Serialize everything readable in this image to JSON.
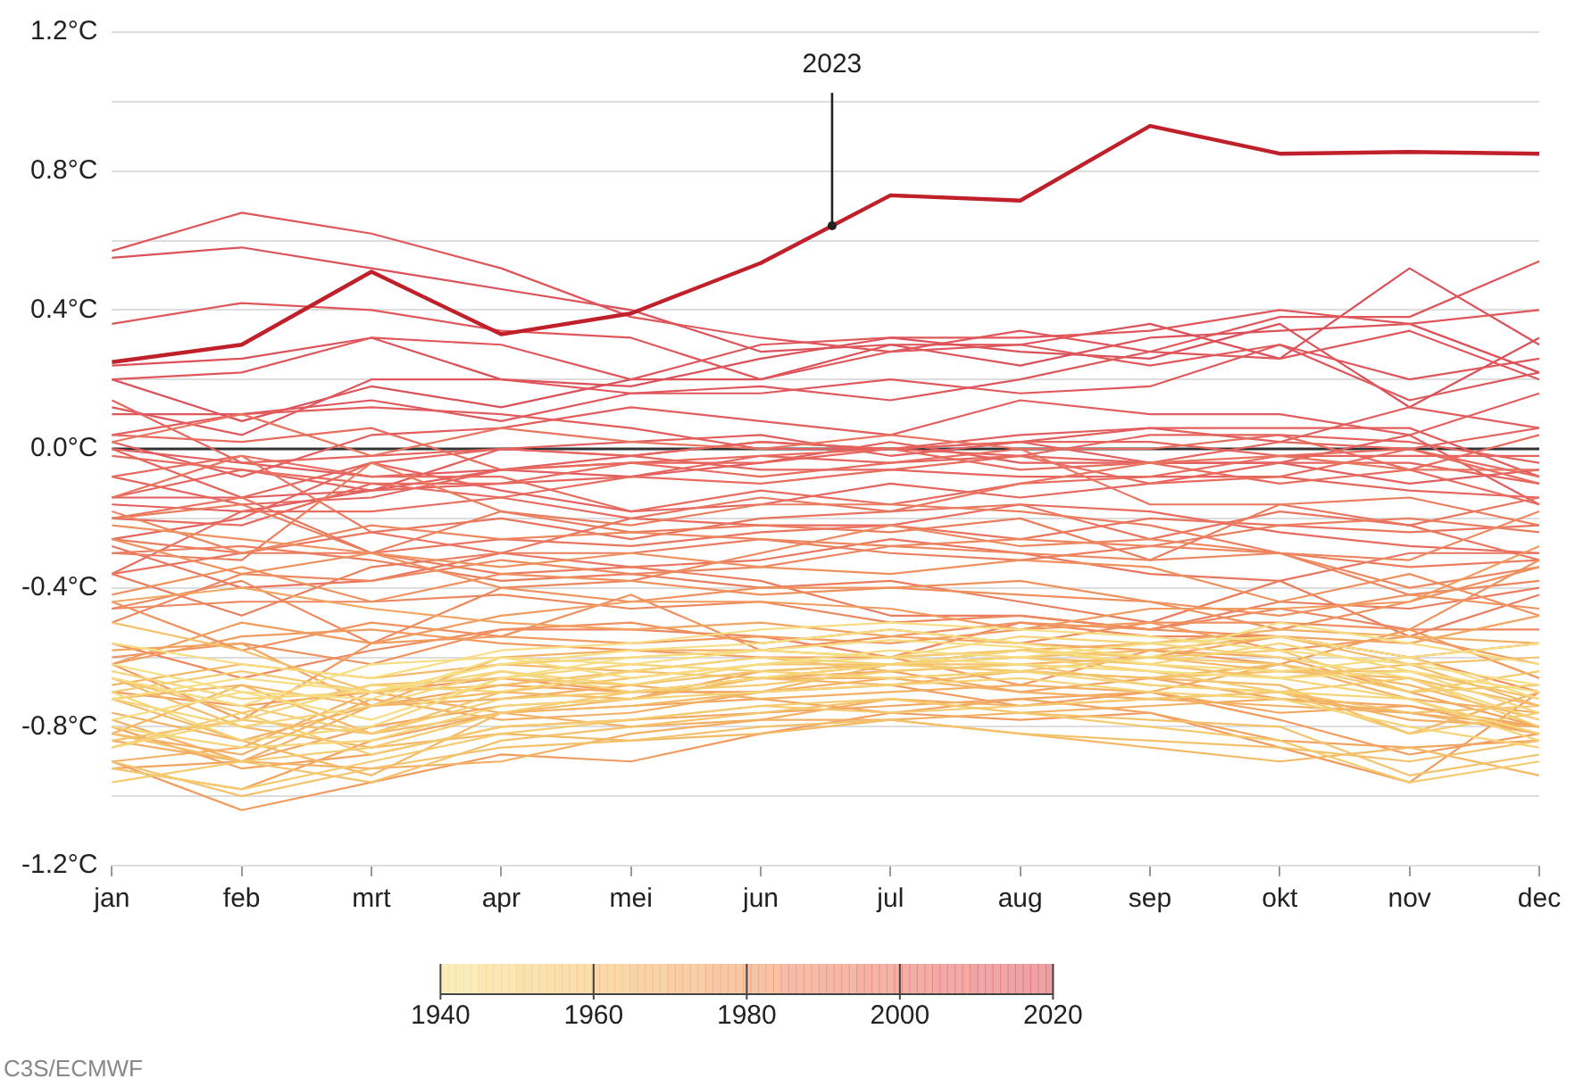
{
  "chart_data": {
    "type": "line",
    "categories": [
      "jan",
      "feb",
      "mrt",
      "apr",
      "mei",
      "jun",
      "jul",
      "aug",
      "sep",
      "okt",
      "nov",
      "dec"
    ],
    "ylim": [
      -1.2,
      1.2
    ],
    "yticks": [
      {
        "value": -1.2,
        "label": "-1.2°C"
      },
      {
        "value": -1.0,
        "label": null
      },
      {
        "value": -0.8,
        "label": "-0.8°C"
      },
      {
        "value": -0.6,
        "label": null
      },
      {
        "value": -0.4,
        "label": "-0.4°C"
      },
      {
        "value": -0.2,
        "label": null
      },
      {
        "value": 0,
        "label": "0.0°C"
      },
      {
        "value": 0.2,
        "label": null
      },
      {
        "value": 0.4,
        "label": "0.4°C"
      },
      {
        "value": 0.6,
        "label": null
      },
      {
        "value": 0.8,
        "label": "0.8°C"
      },
      {
        "value": 1.0,
        "label": null
      },
      {
        "value": 1.2,
        "label": "1.2°C"
      }
    ],
    "grid": "y",
    "legend": false,
    "clim": [
      1940,
      2020
    ],
    "cticks": [
      1940,
      1960,
      1980,
      2000,
      2020
    ],
    "ref_lines": [
      {
        "axis": "y",
        "value": 0,
        "color": "#333333"
      }
    ],
    "annotations": [
      "C3S/ECMWF"
    ],
    "series": [
      {
        "color": "#f7de84",
        "values": [
          -0.62,
          -0.7,
          -0.78,
          -0.66,
          -0.6,
          -0.58,
          -0.55,
          -0.57,
          -0.62,
          -0.64,
          -0.6,
          -0.72
        ]
      },
      {
        "color": "#f7de84",
        "values": [
          -0.72,
          -0.66,
          -0.7,
          -0.62,
          -0.58,
          -0.56,
          -0.52,
          -0.56,
          -0.6,
          -0.5,
          -0.56,
          -0.62
        ]
      },
      {
        "color": "#f7de84",
        "values": [
          -0.66,
          -0.74,
          -0.62,
          -0.6,
          -0.62,
          -0.58,
          -0.6,
          -0.62,
          -0.64,
          -0.66,
          -0.64,
          -0.7
        ]
      },
      {
        "color": "#f7de84",
        "values": [
          -0.78,
          -0.7,
          -0.72,
          -0.6,
          -0.66,
          -0.62,
          -0.58,
          -0.6,
          -0.56,
          -0.54,
          -0.6,
          -0.56
        ]
      },
      {
        "color": "#f7de84",
        "values": [
          -0.56,
          -0.62,
          -0.66,
          -0.58,
          -0.56,
          -0.52,
          -0.5,
          -0.52,
          -0.54,
          -0.58,
          -0.62,
          -0.68
        ]
      },
      {
        "color": "#f6d478",
        "values": [
          -0.64,
          -0.72,
          -0.7,
          -0.64,
          -0.68,
          -0.62,
          -0.6,
          -0.54,
          -0.56,
          -0.6,
          -0.66,
          -0.78
        ]
      },
      {
        "color": "#f6d478",
        "values": [
          -0.72,
          -0.8,
          -0.74,
          -0.64,
          -0.7,
          -0.66,
          -0.62,
          -0.6,
          -0.64,
          -0.66,
          -0.72,
          -0.82
        ]
      },
      {
        "color": "#f6d478",
        "values": [
          -0.86,
          -0.78,
          -0.68,
          -0.7,
          -0.64,
          -0.6,
          -0.62,
          -0.58,
          -0.62,
          -0.56,
          -0.64,
          -0.76
        ]
      },
      {
        "color": "#f6d478",
        "values": [
          -0.7,
          -0.84,
          -0.8,
          -0.66,
          -0.62,
          -0.64,
          -0.66,
          -0.64,
          -0.68,
          -0.7,
          -0.72,
          -0.84
        ]
      },
      {
        "color": "#f6d478",
        "values": [
          -0.8,
          -0.86,
          -0.84,
          -0.74,
          -0.72,
          -0.7,
          -0.68,
          -0.66,
          -0.7,
          -0.72,
          -0.8,
          -0.86
        ]
      },
      {
        "color": "#f5cb70",
        "values": [
          -0.92,
          -0.98,
          -0.9,
          -0.82,
          -0.78,
          -0.74,
          -0.72,
          -0.76,
          -0.8,
          -0.84,
          -0.96,
          -0.9
        ]
      },
      {
        "color": "#f5cb70",
        "values": [
          -0.96,
          -0.9,
          -0.86,
          -0.76,
          -0.7,
          -0.66,
          -0.62,
          -0.64,
          -0.6,
          -0.58,
          -0.7,
          -0.64
        ]
      },
      {
        "color": "#f5cb70",
        "values": [
          -0.66,
          -0.74,
          -0.82,
          -0.72,
          -0.7,
          -0.68,
          -0.64,
          -0.62,
          -0.64,
          -0.7,
          -0.82,
          -0.76
        ]
      },
      {
        "color": "#f5cb70",
        "values": [
          -0.7,
          -0.64,
          -0.7,
          -0.62,
          -0.6,
          -0.58,
          -0.6,
          -0.58,
          -0.6,
          -0.62,
          -0.7,
          -0.68
        ]
      },
      {
        "color": "#f5cb70",
        "values": [
          -0.86,
          -0.76,
          -0.88,
          -0.8,
          -0.78,
          -0.74,
          -0.76,
          -0.74,
          -0.72,
          -0.7,
          -0.66,
          -0.8
        ]
      },
      {
        "color": "#f4c26b",
        "values": [
          -0.82,
          -0.9,
          -0.96,
          -0.84,
          -0.8,
          -0.76,
          -0.72,
          -0.76,
          -0.78,
          -0.8,
          -0.94,
          -0.88
        ]
      },
      {
        "color": "#f4c26b",
        "values": [
          -0.9,
          -1.0,
          -0.92,
          -0.86,
          -0.84,
          -0.8,
          -0.78,
          -0.82,
          -0.84,
          -0.86,
          -0.9,
          -0.84
        ]
      },
      {
        "color": "#f4c26b",
        "values": [
          -0.84,
          -0.78,
          -0.82,
          -0.7,
          -0.66,
          -0.62,
          -0.62,
          -0.6,
          -0.62,
          -0.66,
          -0.62,
          -0.6
        ]
      },
      {
        "color": "#f4c26b",
        "values": [
          -0.5,
          -0.58,
          -0.7,
          -0.68,
          -0.64,
          -0.66,
          -0.62,
          -0.64,
          -0.66,
          -0.64,
          -0.64,
          -0.72
        ]
      },
      {
        "color": "#f4c26b",
        "values": [
          -0.66,
          -0.76,
          -0.68,
          -0.66,
          -0.68,
          -0.64,
          -0.62,
          -0.62,
          -0.68,
          -0.7,
          -0.76,
          -0.74
        ]
      },
      {
        "color": "#f4b967",
        "values": [
          -0.72,
          -0.84,
          -0.94,
          -0.76,
          -0.72,
          -0.66,
          -0.66,
          -0.64,
          -0.66,
          -0.68,
          -0.82,
          -0.7
        ]
      },
      {
        "color": "#f4b967",
        "values": [
          -0.68,
          -0.62,
          -0.66,
          -0.62,
          -0.64,
          -0.6,
          -0.64,
          -0.62,
          -0.6,
          -0.64,
          -0.66,
          -0.74
        ]
      },
      {
        "color": "#f4b967",
        "values": [
          -0.72,
          -0.68,
          -0.74,
          -0.7,
          -0.72,
          -0.66,
          -0.68,
          -0.64,
          -0.66,
          -0.62,
          -0.68,
          -0.78
        ]
      },
      {
        "color": "#f4b967",
        "values": [
          -0.82,
          -0.68,
          -0.82,
          -0.76,
          -0.74,
          -0.7,
          -0.62,
          -0.6,
          -0.58,
          -0.54,
          -0.62,
          -0.74
        ]
      },
      {
        "color": "#f4b967",
        "values": [
          -0.66,
          -0.8,
          -0.86,
          -0.82,
          -0.84,
          -0.82,
          -0.78,
          -0.82,
          -0.86,
          -0.9,
          -0.86,
          -0.94
        ]
      },
      {
        "color": "#f3af63",
        "values": [
          -0.84,
          -0.9,
          -0.92,
          -0.9,
          -0.82,
          -0.78,
          -0.78,
          -0.76,
          -0.74,
          -0.72,
          -0.76,
          -0.8
        ]
      },
      {
        "color": "#f3af63",
        "values": [
          -0.82,
          -0.88,
          -0.72,
          -0.78,
          -0.76,
          -0.7,
          -0.66,
          -0.7,
          -0.72,
          -0.74,
          -0.76,
          -0.82
        ]
      },
      {
        "color": "#f3af63",
        "values": [
          -0.78,
          -0.9,
          -0.74,
          -0.72,
          -0.68,
          -0.72,
          -0.7,
          -0.68,
          -0.7,
          -0.62,
          -0.72,
          -0.76
        ]
      },
      {
        "color": "#f3af63",
        "values": [
          -0.9,
          -0.86,
          -0.7,
          -0.76,
          -0.8,
          -0.78,
          -0.72,
          -0.74,
          -0.72,
          -0.7,
          -0.78,
          -0.8
        ]
      },
      {
        "color": "#f3af63",
        "values": [
          -0.76,
          -0.84,
          -0.74,
          -0.6,
          -0.58,
          -0.58,
          -0.6,
          -0.58,
          -0.56,
          -0.52,
          -0.54,
          -0.56
        ]
      },
      {
        "color": "#f2a561",
        "values": [
          -0.58,
          -0.56,
          -0.74,
          -0.68,
          -0.7,
          -0.66,
          -0.64,
          -0.7,
          -0.66,
          -0.72,
          -0.74,
          -0.8
        ]
      },
      {
        "color": "#f2a561",
        "values": [
          -0.8,
          -0.92,
          -0.88,
          -0.8,
          -0.78,
          -0.76,
          -0.74,
          -0.72,
          -0.7,
          -0.76,
          -0.74,
          -0.82
        ]
      },
      {
        "color": "#f2a561",
        "values": [
          -0.92,
          -0.9,
          -0.8,
          -0.74,
          -0.72,
          -0.64,
          -0.62,
          -0.58,
          -0.6,
          -0.54,
          -0.56,
          -0.48
        ]
      },
      {
        "color": "#f2a561",
        "values": [
          -0.44,
          -0.4,
          -0.46,
          -0.5,
          -0.52,
          -0.5,
          -0.54,
          -0.56,
          -0.58,
          -0.6,
          -0.7,
          -0.8
        ]
      },
      {
        "color": "#f2a561",
        "values": [
          -0.92,
          -0.98,
          -0.84,
          -0.76,
          -0.74,
          -0.72,
          -0.76,
          -0.72,
          -0.76,
          -0.84,
          -0.86,
          -0.84
        ]
      },
      {
        "color": "#f19b5f",
        "values": [
          -0.7,
          -0.74,
          -0.7,
          -0.66,
          -0.7,
          -0.7,
          -0.68,
          -0.74,
          -0.7,
          -0.78,
          -0.88,
          -0.82
        ]
      },
      {
        "color": "#f19b5f",
        "values": [
          -0.9,
          -1.04,
          -0.96,
          -0.88,
          -0.9,
          -0.82,
          -0.76,
          -0.78,
          -0.76,
          -0.86,
          -0.96,
          -0.7
        ]
      },
      {
        "color": "#f19b5f",
        "values": [
          -0.62,
          -0.5,
          -0.56,
          -0.48,
          -0.44,
          -0.44,
          -0.46,
          -0.52,
          -0.5,
          -0.58,
          -0.54,
          -0.62
        ]
      },
      {
        "color": "#f19b5f",
        "values": [
          -0.62,
          -0.54,
          -0.52,
          -0.56,
          -0.58,
          -0.6,
          -0.6,
          -0.68,
          -0.58,
          -0.62,
          -0.52,
          -0.66
        ]
      },
      {
        "color": "#f19b5f",
        "values": [
          -0.62,
          -0.78,
          -0.56,
          -0.54,
          -0.56,
          -0.54,
          -0.56,
          -0.52,
          -0.46,
          -0.46,
          -0.44,
          -0.28
        ]
      },
      {
        "color": "#ef915e",
        "values": [
          -0.42,
          -0.34,
          -0.44,
          -0.36,
          -0.38,
          -0.42,
          -0.4,
          -0.42,
          -0.44,
          -0.48,
          -0.42,
          -0.46
        ]
      },
      {
        "color": "#ef915e",
        "values": [
          -0.26,
          -0.36,
          -0.3,
          -0.4,
          -0.44,
          -0.4,
          -0.4,
          -0.38,
          -0.44,
          -0.52,
          -0.44,
          -0.34
        ]
      },
      {
        "color": "#ef915e",
        "values": [
          -0.6,
          -0.56,
          -0.62,
          -0.52,
          -0.5,
          -0.56,
          -0.52,
          -0.56,
          -0.5,
          -0.5,
          -0.52,
          -0.32
        ]
      },
      {
        "color": "#ef915e",
        "values": [
          -0.22,
          -0.26,
          -0.3,
          -0.34,
          -0.3,
          -0.34,
          -0.36,
          -0.32,
          -0.34,
          -0.44,
          -0.36,
          -0.48
        ]
      },
      {
        "color": "#ef915e",
        "values": [
          -0.44,
          -0.58,
          -0.5,
          -0.54,
          -0.42,
          -0.58,
          -0.54,
          -0.5,
          -0.52,
          -0.54,
          -0.6,
          -0.7
        ]
      },
      {
        "color": "#ed875f",
        "values": [
          -0.56,
          -0.66,
          -0.58,
          -0.52,
          -0.52,
          -0.54,
          -0.6,
          -0.5,
          -0.54,
          -0.54,
          -0.6,
          -0.56
        ]
      },
      {
        "color": "#ed875f",
        "values": [
          -0.46,
          -0.44,
          -0.44,
          -0.42,
          -0.46,
          -0.44,
          -0.5,
          -0.48,
          -0.52,
          -0.46,
          -0.52,
          -0.52
        ]
      },
      {
        "color": "#ed875f",
        "values": [
          -0.46,
          -0.38,
          -0.56,
          -0.4,
          -0.38,
          -0.3,
          -0.22,
          -0.28,
          -0.26,
          -0.3,
          -0.32,
          -0.18
        ]
      },
      {
        "color": "#ed875f",
        "values": [
          -0.18,
          -0.3,
          -0.22,
          -0.26,
          -0.24,
          -0.26,
          -0.28,
          -0.3,
          -0.32,
          -0.3,
          -0.42,
          -0.38
        ]
      },
      {
        "color": "#ed875f",
        "values": [
          -0.5,
          -0.36,
          -0.38,
          -0.32,
          -0.36,
          -0.34,
          -0.28,
          -0.26,
          -0.28,
          -0.3,
          -0.4,
          -0.34
        ]
      },
      {
        "color": "#eb7d5f",
        "values": [
          -0.3,
          -0.32,
          -0.04,
          -0.18,
          -0.24,
          -0.22,
          -0.24,
          -0.2,
          -0.32,
          -0.16,
          -0.14,
          -0.22
        ]
      },
      {
        "color": "#eb7d5f",
        "values": [
          -0.2,
          -0.16,
          -0.3,
          -0.18,
          -0.22,
          -0.16,
          -0.16,
          -0.18,
          -0.22,
          -0.3,
          -0.34,
          -0.32
        ]
      },
      {
        "color": "#eb7d5f",
        "values": [
          -0.26,
          -0.3,
          -0.3,
          -0.36,
          -0.34,
          -0.38,
          -0.48,
          -0.48,
          -0.52,
          -0.44,
          -0.46,
          -0.4
        ]
      },
      {
        "color": "#eb7d5f",
        "values": [
          -0.3,
          -0.28,
          -0.32,
          -0.38,
          -0.36,
          -0.4,
          -0.38,
          -0.44,
          -0.5,
          -0.38,
          -0.54,
          -0.42
        ]
      },
      {
        "color": "#eb7d5f",
        "values": [
          -0.36,
          -0.48,
          -0.34,
          -0.3,
          -0.3,
          -0.26,
          -0.3,
          -0.32,
          -0.28,
          -0.22,
          -0.2,
          -0.24
        ]
      },
      {
        "color": "#e9745f",
        "values": [
          -0.14,
          -0.02,
          -0.24,
          -0.2,
          -0.26,
          -0.2,
          -0.18,
          -0.16,
          -0.26,
          -0.18,
          -0.22,
          -0.32
        ]
      },
      {
        "color": "#e9745f",
        "values": [
          -0.28,
          -0.4,
          -0.38,
          -0.3,
          -0.34,
          -0.32,
          -0.26,
          -0.3,
          -0.36,
          -0.38,
          -0.3,
          -0.3
        ]
      },
      {
        "color": "#e9745f",
        "values": [
          -0.36,
          -0.3,
          -0.24,
          -0.3,
          -0.2,
          -0.14,
          -0.18,
          -0.1,
          -0.04,
          -0.02,
          -0.06,
          -0.06
        ]
      },
      {
        "color": "#e9745f",
        "values": [
          0.02,
          0.1,
          -0.02,
          0.06,
          0.02,
          0.0,
          0.04,
          0.0,
          -0.16,
          -0.16,
          -0.22,
          -0.14
        ]
      },
      {
        "color": "#e9745f",
        "values": [
          -0.2,
          -0.14,
          -0.3,
          -0.26,
          -0.28,
          -0.24,
          -0.22,
          -0.26,
          -0.2,
          -0.22,
          -0.24,
          -0.22
        ]
      },
      {
        "color": "#e76b5e",
        "values": [
          -0.36,
          -0.18,
          -0.18,
          -0.14,
          -0.2,
          -0.22,
          -0.22,
          -0.16,
          -0.18,
          -0.24,
          -0.28,
          -0.3
        ]
      },
      {
        "color": "#e76b5e",
        "values": [
          -0.2,
          -0.22,
          -0.1,
          -0.14,
          -0.08,
          -0.1,
          -0.06,
          -0.02,
          -0.1,
          -0.08,
          0.0,
          -0.08
        ]
      },
      {
        "color": "#e76b5e",
        "values": [
          0.04,
          0.02,
          0.06,
          -0.06,
          -0.04,
          -0.02,
          0.0,
          -0.06,
          -0.04,
          -0.1,
          -0.06,
          -0.16
        ]
      },
      {
        "color": "#e76b5e",
        "values": [
          -0.02,
          -0.06,
          -0.1,
          -0.1,
          -0.04,
          -0.08,
          -0.04,
          0.0,
          0.0,
          0.04,
          -0.06,
          0.04
        ]
      },
      {
        "color": "#e76b5e",
        "values": [
          -0.08,
          -0.02,
          -0.08,
          -0.08,
          -0.18,
          -0.12,
          -0.16,
          -0.1,
          -0.08,
          -0.02,
          0.0,
          -0.1
        ]
      },
      {
        "color": "#e5645e",
        "values": [
          0.0,
          -0.14,
          -0.04,
          0.0,
          -0.02,
          0.02,
          0.0,
          -0.02,
          0.04,
          0.04,
          0.02,
          -0.04
        ]
      },
      {
        "color": "#e5645e",
        "values": [
          -0.14,
          -0.06,
          -0.12,
          -0.1,
          -0.08,
          -0.02,
          -0.04,
          -0.02,
          -0.04,
          0.02,
          0.0,
          0.06
        ]
      },
      {
        "color": "#e5645e",
        "values": [
          0.14,
          -0.04,
          -0.02,
          0.0,
          -0.02,
          -0.06,
          -0.06,
          -0.08,
          -0.08,
          -0.08,
          -0.12,
          -0.14
        ]
      },
      {
        "color": "#e5645e",
        "values": [
          -0.26,
          -0.2,
          -0.04,
          -0.12,
          -0.18,
          -0.16,
          -0.1,
          -0.14,
          -0.1,
          -0.04,
          -0.04,
          -0.1
        ]
      },
      {
        "color": "#e5645e",
        "values": [
          -0.08,
          -0.16,
          -0.14,
          -0.06,
          -0.04,
          -0.04,
          0.0,
          0.02,
          0.02,
          -0.02,
          -0.02,
          -0.02
        ]
      },
      {
        "color": "#e25d5d",
        "values": [
          0.04,
          0.1,
          0.12,
          0.1,
          0.06,
          0.0,
          0.0,
          0.02,
          -0.04,
          -0.04,
          0.04,
          -0.16
        ]
      },
      {
        "color": "#e25d5d",
        "values": [
          -0.16,
          -0.18,
          -0.12,
          -0.06,
          -0.08,
          -0.04,
          0.02,
          -0.04,
          -0.04,
          -0.04,
          -0.1,
          -0.06
        ]
      },
      {
        "color": "#e25d5d",
        "values": [
          -0.14,
          -0.14,
          -0.12,
          0.0,
          0.02,
          0.04,
          -0.02,
          0.02,
          0.06,
          0.06,
          0.06,
          -0.08
        ]
      },
      {
        "color": "#e25d5d",
        "values": [
          0.0,
          -0.04,
          -0.08,
          -0.06,
          -0.02,
          0.02,
          0.0,
          0.04,
          0.06,
          0.02,
          0.12,
          0.06
        ]
      },
      {
        "color": "#e25d5d",
        "values": [
          0.02,
          -0.08,
          0.04,
          0.06,
          0.12,
          0.08,
          0.04,
          0.14,
          0.1,
          0.1,
          0.04,
          0.16
        ]
      },
      {
        "color": "#df575b",
        "values": [
          0.1,
          0.1,
          0.14,
          0.08,
          0.16,
          0.18,
          0.14,
          0.2,
          0.28,
          0.38,
          0.38,
          0.54
        ]
      },
      {
        "color": "#df575b",
        "values": [
          0.57,
          0.68,
          0.62,
          0.52,
          0.38,
          0.32,
          0.28,
          0.34,
          0.28,
          0.26,
          0.34,
          0.2
        ]
      },
      {
        "color": "#df575b",
        "values": [
          0.36,
          0.42,
          0.4,
          0.34,
          0.32,
          0.2,
          0.28,
          0.3,
          0.24,
          0.3,
          0.2,
          0.26
        ]
      },
      {
        "color": "#df575b",
        "values": [
          0.12,
          0.04,
          0.2,
          0.2,
          0.16,
          0.16,
          0.2,
          0.16,
          0.18,
          0.3,
          0.14,
          0.22
        ]
      },
      {
        "color": "#df575b",
        "values": [
          0.2,
          0.22,
          0.32,
          0.3,
          0.2,
          0.3,
          0.32,
          0.32,
          0.34,
          0.4,
          0.36,
          0.4
        ]
      },
      {
        "color": "#db5159",
        "values": [
          0.55,
          0.58,
          0.52,
          0.46,
          0.4,
          0.28,
          0.3,
          0.3,
          0.36,
          0.26,
          0.52,
          0.3
        ]
      },
      {
        "color": "#db5159",
        "values": [
          0.2,
          0.08,
          0.18,
          0.12,
          0.2,
          0.2,
          0.3,
          0.24,
          0.32,
          0.34,
          0.36,
          0.22
        ]
      },
      {
        "color": "#db5159",
        "values": [
          0.24,
          0.26,
          0.32,
          0.2,
          0.18,
          0.26,
          0.32,
          0.28,
          0.26,
          0.36,
          0.12,
          0.32
        ]
      },
      {
        "name": "2023",
        "color": "#c0202a",
        "values": [
          0.25,
          0.3,
          0.51,
          0.33,
          0.39,
          0.535,
          0.73,
          0.715,
          0.93,
          0.85,
          0.855,
          0.85
        ]
      }
    ]
  }
}
